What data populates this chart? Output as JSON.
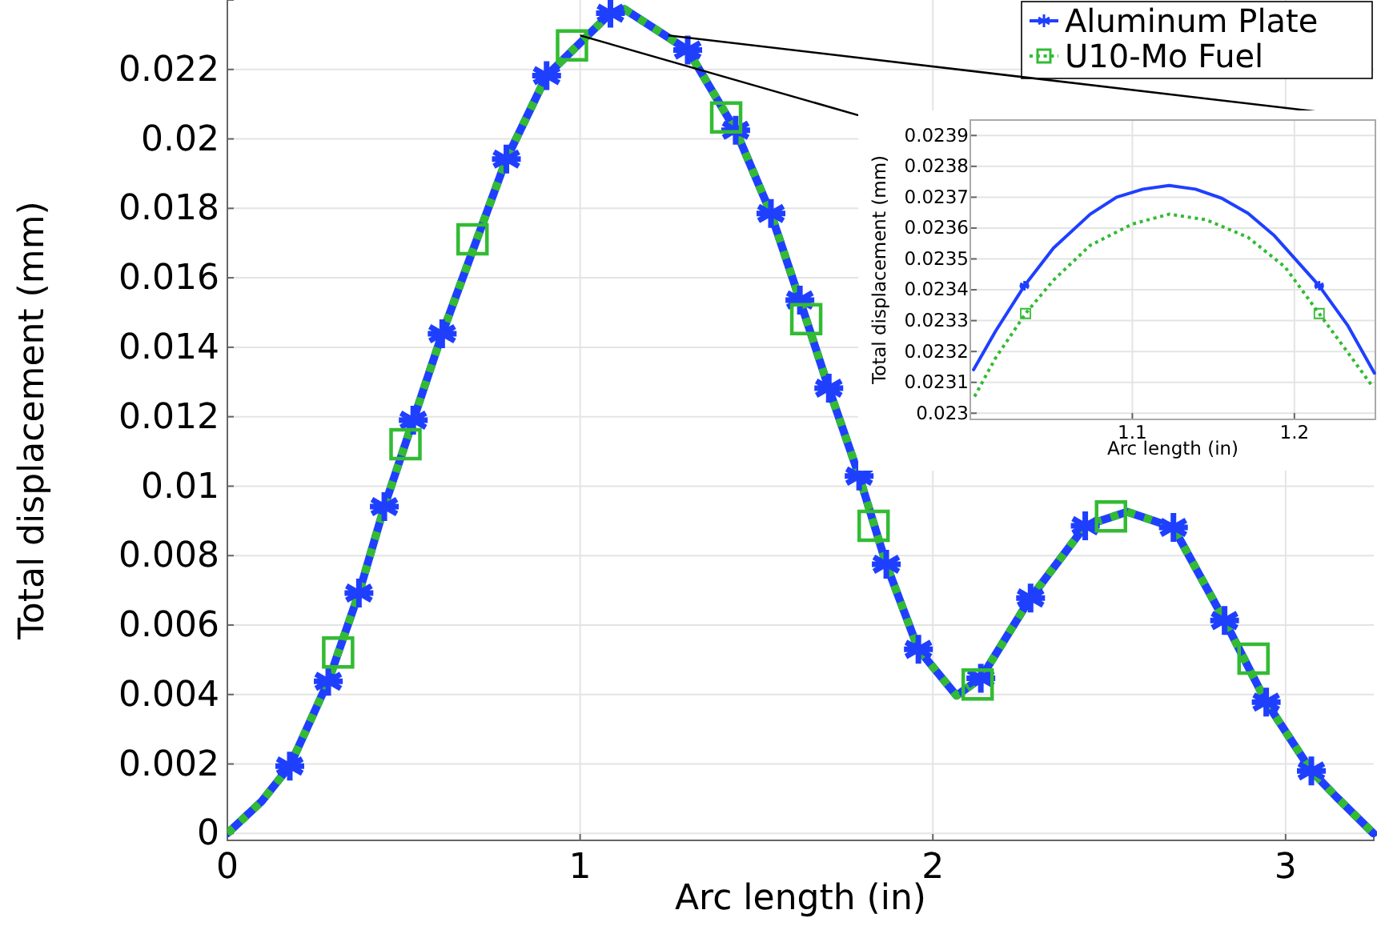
{
  "chart_data": [
    {
      "type": "line",
      "xlabel": "Arc length (in)",
      "ylabel": "Total displacement (mm)",
      "xlim": [
        0,
        3.25
      ],
      "ylim": [
        -0.0002,
        0.024
      ],
      "xticks": [
        0,
        1,
        2,
        3
      ],
      "yticks": [
        0,
        0.002,
        0.004,
        0.006,
        0.008,
        0.01,
        0.012,
        0.014,
        0.016,
        0.018,
        0.02,
        0.022
      ],
      "grid": true,
      "legend": "top right",
      "series": [
        {
          "name": "Aluminum Plate",
          "color": "#1f3fff",
          "line_style": "solid",
          "x": [
            0,
            0.097,
            0.177,
            0.286,
            0.373,
            0.445,
            0.527,
            0.609,
            0.791,
            0.905,
            1.086,
            1.125,
            1.305,
            1.441,
            1.541,
            1.623,
            1.705,
            1.791,
            1.868,
            1.959,
            2.067,
            2.136,
            2.277,
            2.432,
            2.551,
            2.682,
            2.827,
            2.945,
            3.073,
            3.142,
            3.249
          ],
          "values": [
            0,
            0.00092,
            0.00194,
            0.00438,
            0.00692,
            0.00941,
            0.0119,
            0.01439,
            0.01942,
            0.02182,
            0.02362,
            0.02374,
            0.02256,
            0.02025,
            0.01785,
            0.01536,
            0.01282,
            0.01029,
            0.00775,
            0.0053,
            0.00397,
            0.00447,
            0.00678,
            0.00886,
            0.00926,
            0.00881,
            0.00613,
            0.00378,
            0.0018,
            0.00107,
            0
          ]
        },
        {
          "name": "U10-Mo Fuel",
          "color": "#33bb33",
          "line_style": "dotted",
          "x": [
            0,
            0.097,
            0.177,
            0.286,
            0.373,
            0.445,
            0.527,
            0.609,
            0.791,
            0.905,
            1.086,
            1.125,
            1.305,
            1.441,
            1.541,
            1.623,
            1.705,
            1.791,
            1.868,
            1.959,
            2.067,
            2.136,
            2.277,
            2.432,
            2.551,
            2.682,
            2.827,
            2.945,
            3.073,
            3.142,
            3.249
          ],
          "values": [
            0,
            0.00092,
            0.00194,
            0.00438,
            0.00692,
            0.00941,
            0.0119,
            0.01439,
            0.01942,
            0.02182,
            0.02362,
            0.02374,
            0.02256,
            0.02025,
            0.01785,
            0.01536,
            0.01282,
            0.01029,
            0.00775,
            0.0053,
            0.00397,
            0.00447,
            0.00678,
            0.00886,
            0.00926,
            0.00881,
            0.00613,
            0.00378,
            0.0018,
            0.00107,
            0
          ]
        },
        {
          "type": "scatter",
          "marker": "cross",
          "color": "#1f3fff",
          "x": [
            0.177,
            0.286,
            0.373,
            0.445,
            0.527,
            0.609,
            0.791,
            0.905,
            1.086,
            1.305,
            1.441,
            1.541,
            1.623,
            1.705,
            1.791,
            1.868,
            1.959,
            2.136,
            2.277,
            2.432,
            2.682,
            2.827,
            2.945,
            3.073
          ],
          "values": [
            0.00194,
            0.00438,
            0.00692,
            0.00941,
            0.0119,
            0.01439,
            0.01942,
            0.02182,
            0.02362,
            0.02256,
            0.02025,
            0.01785,
            0.01536,
            0.01282,
            0.01029,
            0.00775,
            0.0053,
            0.00447,
            0.00678,
            0.00886,
            0.00881,
            0.00613,
            0.00378,
            0.0018
          ]
        },
        {
          "type": "scatter",
          "marker": "square",
          "color": "#33bb33",
          "x": [
            0.314,
            0.505,
            0.695,
            0.977,
            1.414,
            1.641,
            1.832,
            2.127,
            2.505,
            2.909
          ],
          "values": [
            0.00521,
            0.01121,
            0.01711,
            0.02269,
            0.02062,
            0.01481,
            0.00886,
            0.00429,
            0.00913,
            0.00503
          ]
        }
      ]
    },
    {
      "type": "line",
      "xlabel": "Arc length (in)",
      "ylabel": "Total displacement (mm)",
      "xlim": [
        1.0,
        1.25
      ],
      "ylim": [
        0.02298,
        0.02395
      ],
      "xticks": [
        1.1,
        1.2
      ],
      "yticks": [
        0.023,
        0.0231,
        0.0232,
        0.0233,
        0.0234,
        0.0235,
        0.0236,
        0.0237,
        0.0238,
        0.0239
      ],
      "grid": true,
      "series": [
        {
          "color": "#1f3fff",
          "line_style": "solid",
          "x": [
            1.002,
            1.0156,
            1.0334,
            1.0513,
            1.074,
            1.0903,
            1.1065,
            1.1227,
            1.139,
            1.155,
            1.1714,
            1.1877,
            1.2153,
            1.2331,
            1.2494
          ],
          "values": [
            0.023141,
            0.023266,
            0.023413,
            0.023535,
            0.023645,
            0.0237,
            0.023726,
            0.023738,
            0.023726,
            0.023697,
            0.023648,
            0.023575,
            0.023413,
            0.023283,
            0.02313
          ]
        },
        {
          "color": "#33bb33",
          "line_style": "dotted",
          "x": [
            1.0026,
            1.0156,
            1.0341,
            1.0513,
            1.074,
            1.1,
            1.1227,
            1.1455,
            1.1714,
            1.1942,
            1.2153,
            1.2331,
            1.2487
          ],
          "values": [
            0.023054,
            0.023179,
            0.023323,
            0.023431,
            0.023544,
            0.023613,
            0.023645,
            0.023627,
            0.02357,
            0.023474,
            0.023323,
            0.023196,
            0.023083
          ]
        },
        {
          "type": "scatter",
          "marker": "cross",
          "color": "#1f3fff",
          "x": [
            1.0334,
            1.2153
          ],
          "values": [
            0.023413,
            0.023413
          ]
        },
        {
          "type": "scatter",
          "marker": "square",
          "color": "#33bb33",
          "x": [
            1.0341,
            1.2153
          ],
          "values": [
            0.023323,
            0.023323
          ]
        }
      ]
    }
  ]
}
